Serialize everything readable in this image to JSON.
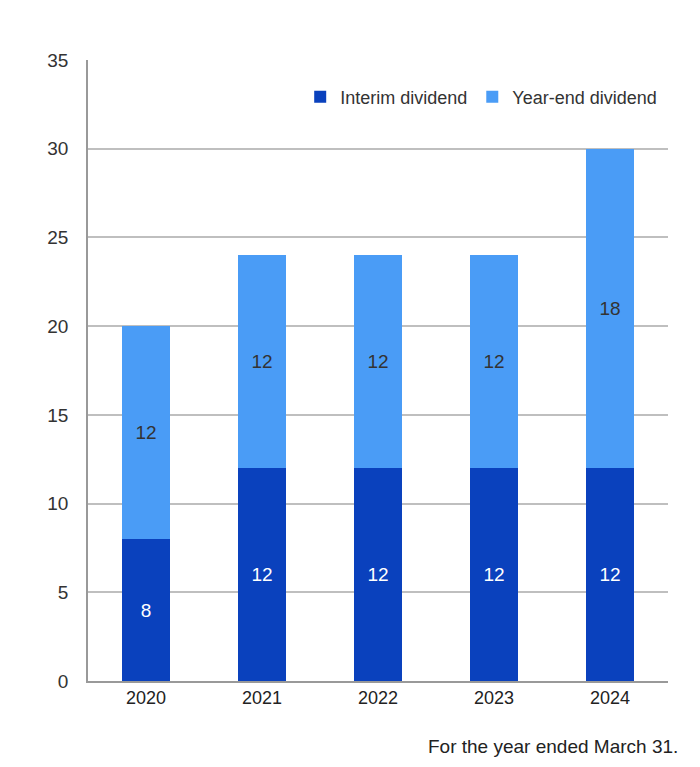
{
  "chart_data": {
    "type": "bar",
    "stacked": true,
    "categories": [
      "2020",
      "2021",
      "2022",
      "2023",
      "2024"
    ],
    "series": [
      {
        "name": "Interim dividend",
        "color": "#0a41bd",
        "values": [
          8,
          12,
          12,
          12,
          12
        ]
      },
      {
        "name": "Year-end dividend",
        "color": "#4a9cf6",
        "values": [
          12,
          12,
          12,
          12,
          18
        ]
      }
    ],
    "ylim": [
      0,
      35
    ],
    "yticks": [
      0,
      5,
      10,
      15,
      20,
      25,
      30,
      35
    ],
    "grid": true,
    "legend": "top right",
    "data_labels": true,
    "annotations": [
      "For the year ended March 31."
    ]
  }
}
